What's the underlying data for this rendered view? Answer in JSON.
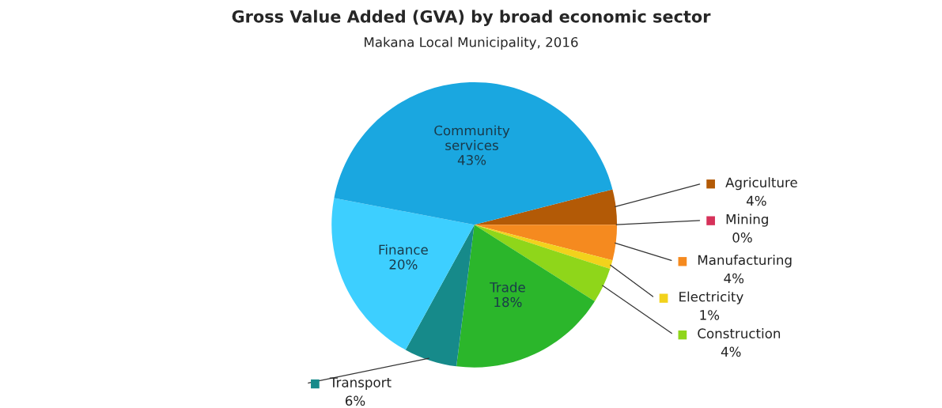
{
  "chart_data": {
    "type": "pie",
    "title": "Gross Value Added (GVA) by broad economic sector",
    "subtitle": "Makana Local Municipality, 2016",
    "categories": [
      "Agriculture",
      "Mining",
      "Manufacturing",
      "Electricity",
      "Construction",
      "Trade",
      "Transport",
      "Finance",
      "Community services"
    ],
    "values": [
      4,
      0,
      4,
      1,
      4,
      18,
      6,
      20,
      43
    ],
    "value_labels": [
      "4%",
      "0%",
      "4%",
      "1%",
      "4%",
      "18%",
      "6%",
      "20%",
      "43%"
    ],
    "legend": "right",
    "colors": [
      "#b35a06",
      "#d6325a",
      "#f58a1f",
      "#f2d21c",
      "#8fd61a",
      "#2bb62b",
      "#168a8a",
      "#3dcfff",
      "#1aa7e0"
    ]
  }
}
